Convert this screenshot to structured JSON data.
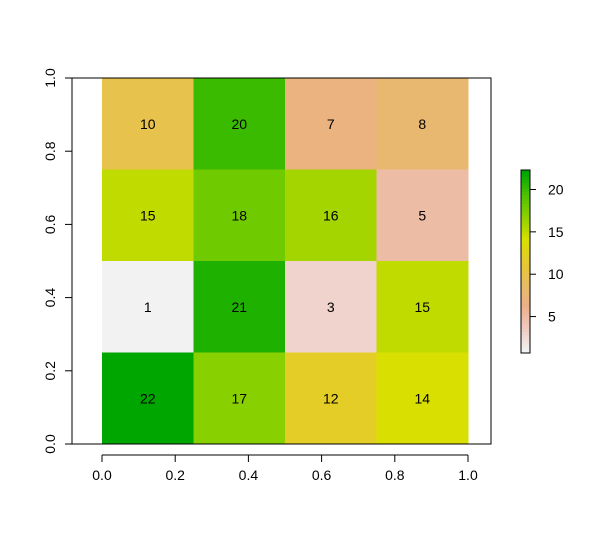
{
  "chart_data": {
    "type": "heatmap",
    "title": "",
    "xlabel": "",
    "ylabel": "",
    "xlim": [
      0,
      1
    ],
    "ylim": [
      0,
      1
    ],
    "x_ticks": [
      "0.0",
      "0.2",
      "0.4",
      "0.6",
      "0.8",
      "1.0"
    ],
    "y_ticks": [
      "0.0",
      "0.2",
      "0.4",
      "0.6",
      "0.8",
      "1.0"
    ],
    "grid": false,
    "rows": 4,
    "cols": 4,
    "values_top_to_bottom": [
      [
        10,
        20,
        7,
        8
      ],
      [
        15,
        18,
        16,
        5
      ],
      [
        1,
        21,
        3,
        15
      ],
      [
        22,
        17,
        12,
        14
      ]
    ],
    "colorbar": {
      "min": 1,
      "max": 22,
      "ticks": [
        5,
        10,
        15,
        20
      ],
      "placement": "right",
      "palette": [
        "#f2f2f2",
        "#f0c9c0",
        "#ebb08b",
        "#e7bc62",
        "#e6c92f",
        "#d9e000",
        "#8fd100",
        "#4ec200",
        "#00a600"
      ]
    }
  }
}
